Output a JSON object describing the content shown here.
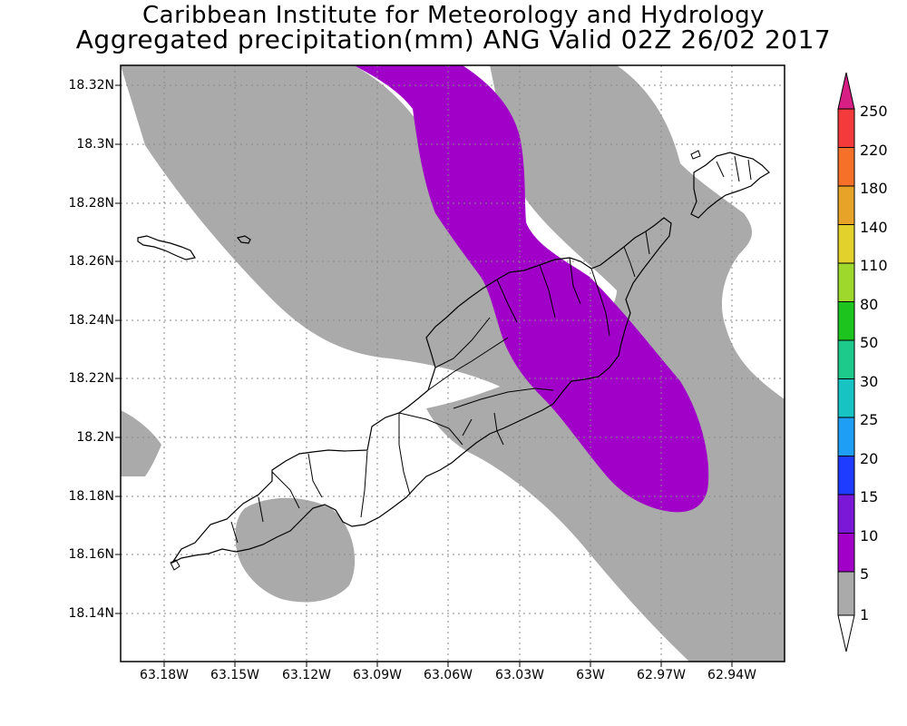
{
  "title": {
    "line1": "Caribbean Institute for Meteorology and Hydrology",
    "line2": "Aggregated precipitation(mm) ANG Valid 02Z 26/02 2017"
  },
  "axes": {
    "y_labels": [
      "18.32N",
      "18.3N",
      "18.28N",
      "18.26N",
      "18.24N",
      "18.22N",
      "18.2N",
      "18.18N",
      "18.16N",
      "18.14N"
    ],
    "x_labels": [
      "63.18W",
      "63.15W",
      "63.12W",
      "63.09W",
      "63.06W",
      "63.03W",
      "63W",
      "62.97W",
      "62.94W"
    ]
  },
  "colorbar": {
    "levels": [
      "250",
      "220",
      "180",
      "140",
      "110",
      "80",
      "50",
      "30",
      "25",
      "20",
      "15",
      "10",
      "5",
      "1"
    ],
    "colors": [
      "#d71e85",
      "#f43a3a",
      "#f6702a",
      "#e7a328",
      "#e2d02c",
      "#9ed82c",
      "#1ec41e",
      "#1ec98c",
      "#18c3c3",
      "#1e9ef5",
      "#1e3cff",
      "#7b18d8",
      "#a000c8",
      "#aaaaaa",
      "#ffffff"
    ]
  },
  "map": {
    "precip_colors": {
      "light": "#aaaaaa",
      "moderate": "#a000c8"
    }
  }
}
